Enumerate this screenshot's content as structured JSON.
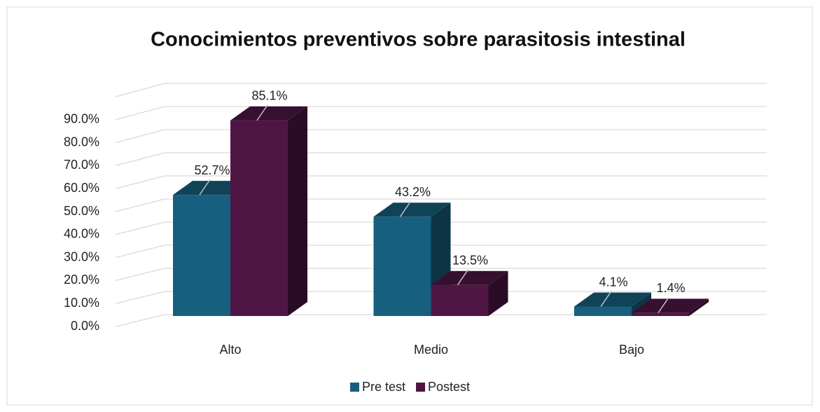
{
  "chart_data": {
    "type": "bar3d",
    "title": "Conocimientos preventivos sobre parasitosis intestinal",
    "categories": [
      "Alto",
      "Medio",
      "Bajo"
    ],
    "series": [
      {
        "name": "Pre test",
        "color": "#175f7e",
        "values": [
          52.7,
          43.2,
          4.1
        ],
        "value_labels": [
          "52.7%",
          "43.2%",
          "4.1%"
        ]
      },
      {
        "name": "Postest",
        "color": "#4f1645",
        "values": [
          85.1,
          13.5,
          1.4
        ],
        "value_labels": [
          "85.1%",
          "13.5%",
          "1.4%"
        ]
      }
    ],
    "ylim": [
      0,
      100
    ],
    "yticks": [
      {
        "value": 0,
        "label": "0.0%"
      },
      {
        "value": 10,
        "label": "10.0%"
      },
      {
        "value": 20,
        "label": "20.0%"
      },
      {
        "value": 30,
        "label": "30.0%"
      },
      {
        "value": 40,
        "label": "40.0%"
      },
      {
        "value": 50,
        "label": "50.0%"
      },
      {
        "value": 60,
        "label": "60.0%"
      },
      {
        "value": 70,
        "label": "70.0%"
      },
      {
        "value": 80,
        "label": "80.0%"
      },
      {
        "value": 90,
        "label": "90.0%"
      }
    ],
    "grid": true,
    "legend": "bottom"
  }
}
